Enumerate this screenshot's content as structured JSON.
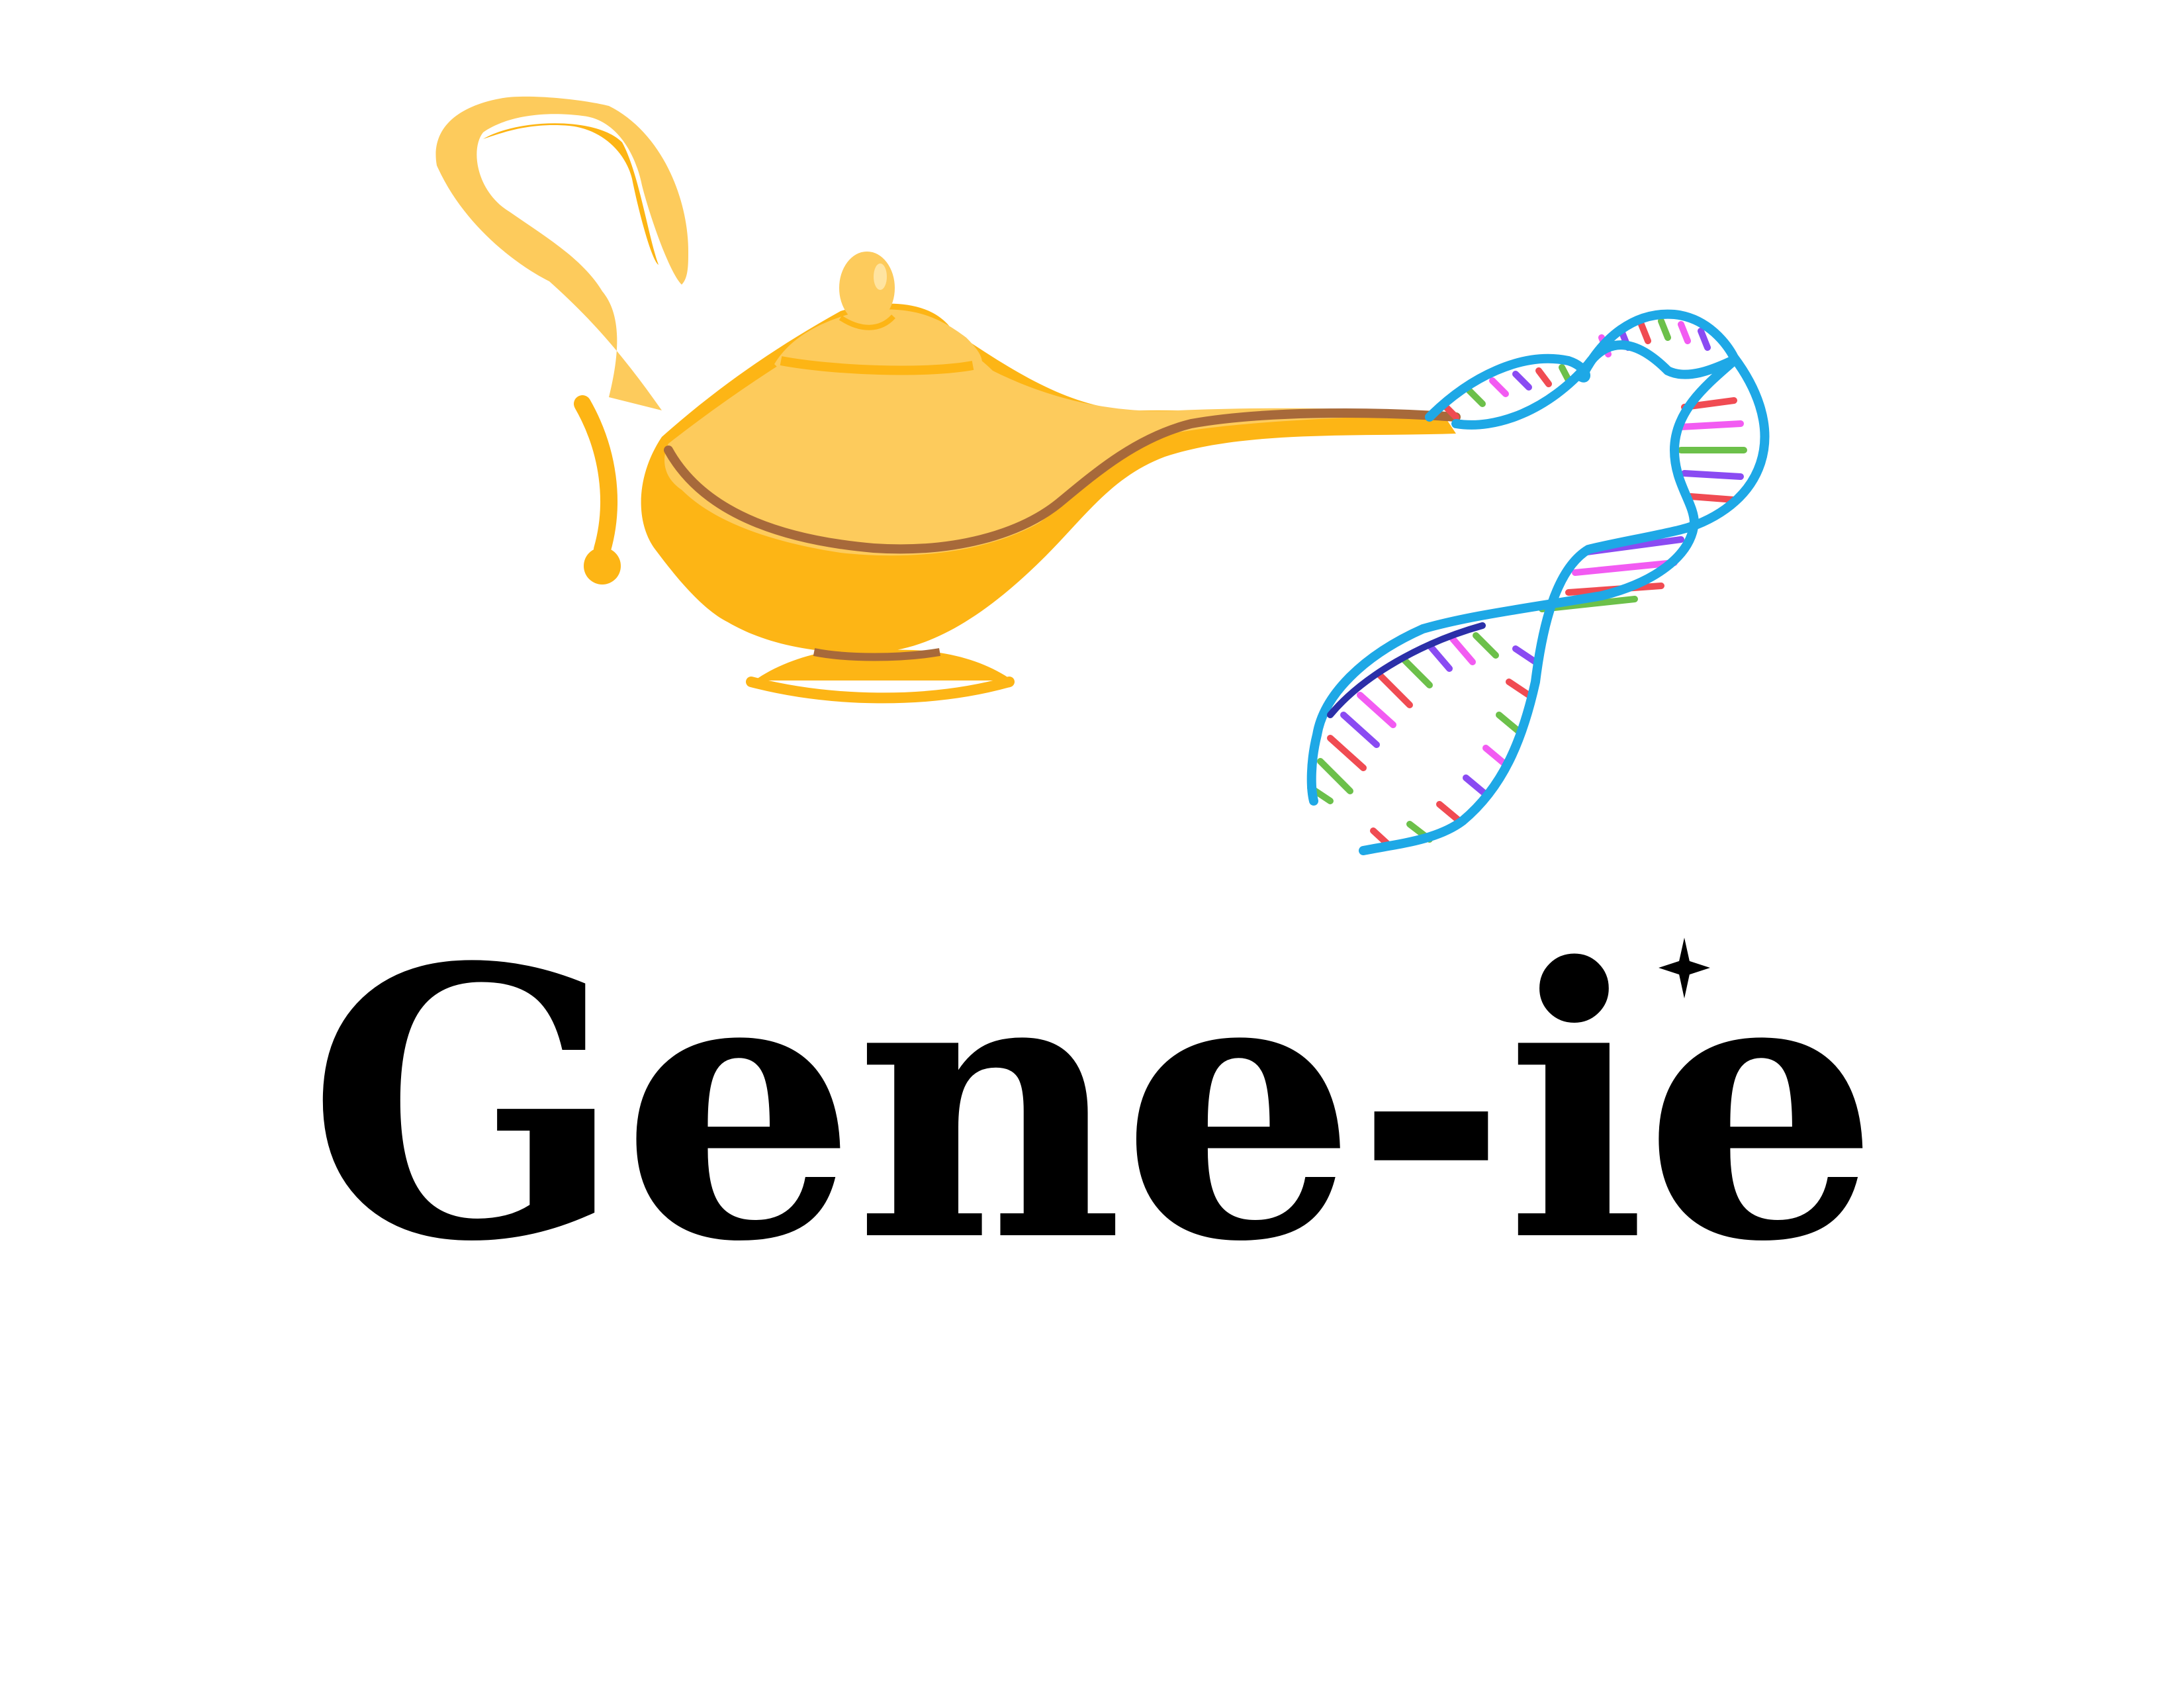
{
  "logo": {
    "wordmark": "Gene-ie",
    "icons": {
      "lamp": "magic-lamp-icon",
      "dna": "dna-helix-icon",
      "sparkle": "sparkle-star-icon"
    },
    "colors": {
      "text": "#000000",
      "lamp_gold": "#FDB515",
      "lamp_light": "#FDCB5C",
      "lamp_shadow": "#A7693A",
      "dna_strand": "#1EA8E6",
      "dna_strand_dark": "#2B2FA8",
      "base_red": "#F04B52",
      "base_green": "#6CC04A",
      "base_magenta": "#F25BF2",
      "base_purple": "#8A4BF2"
    }
  }
}
